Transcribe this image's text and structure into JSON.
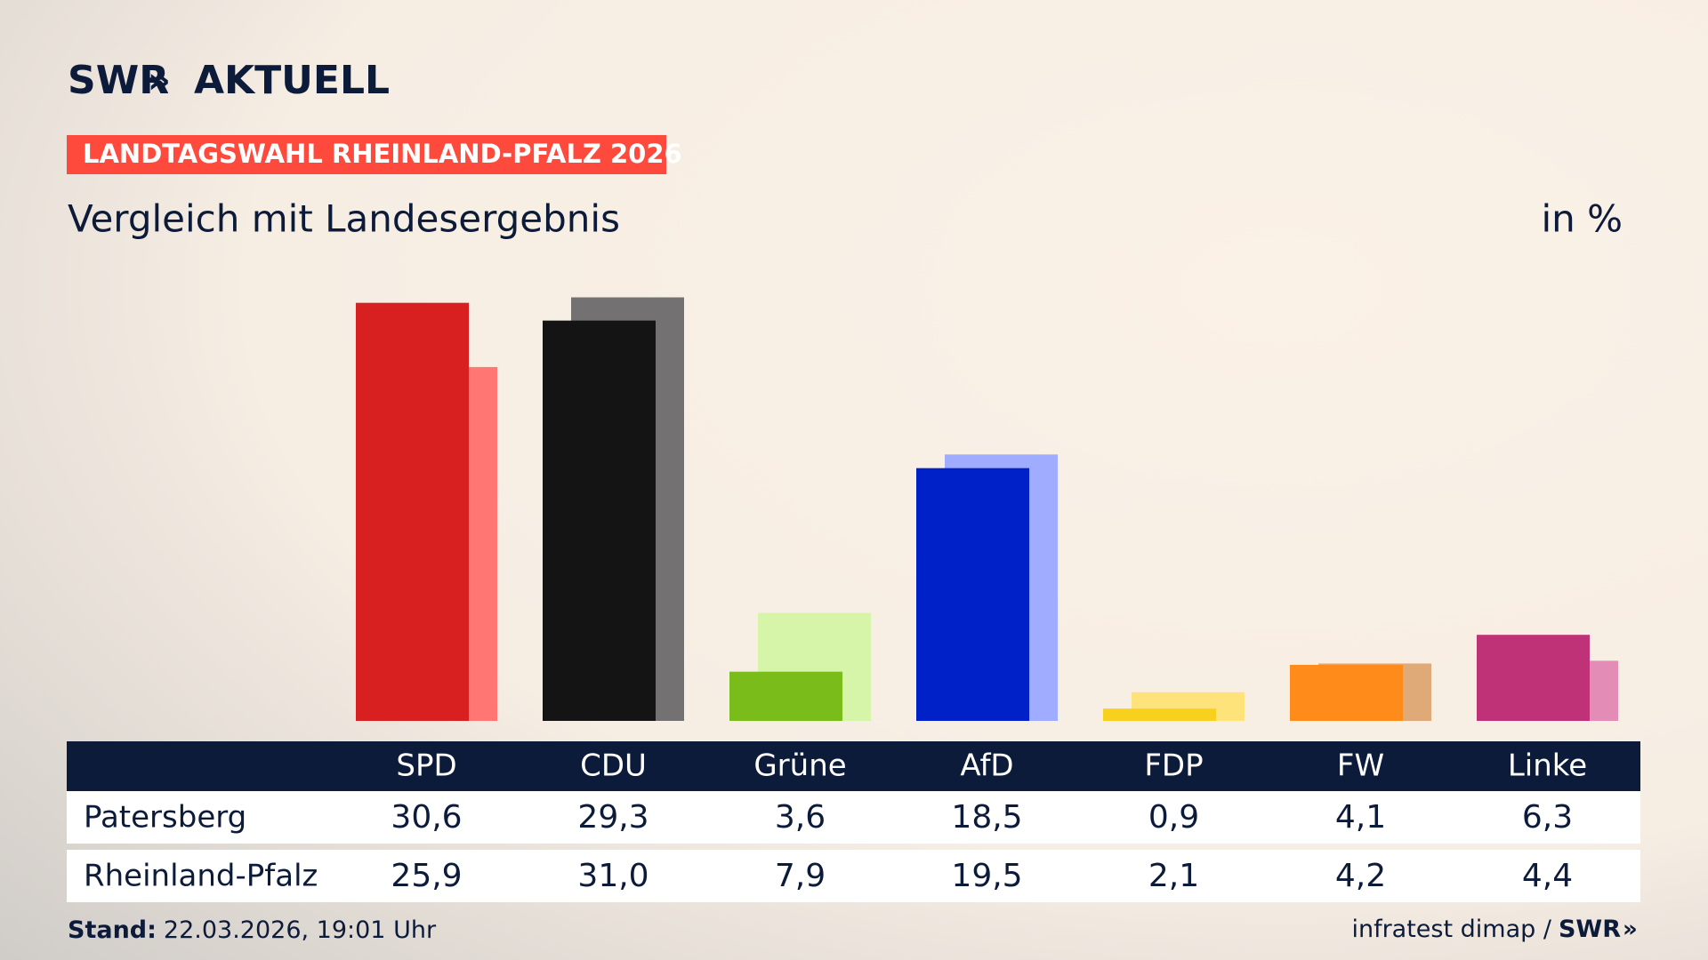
{
  "header": {
    "brand": "SWR",
    "product": "AKTUELL",
    "tag": "LANDTAGSWAHL RHEINLAND-PFALZ 2026"
  },
  "chart_data": {
    "type": "bar",
    "title": "Vergleich mit Landesergebnis",
    "unit": "in %",
    "categories": [
      "SPD",
      "CDU",
      "Grüne",
      "AfD",
      "FDP",
      "FW",
      "Linke"
    ],
    "series": [
      {
        "name": "Patersberg",
        "colors": [
          "#d7201f",
          "#141414",
          "#7abd1b",
          "#0021c8",
          "#f8d11e",
          "#ff8b1a",
          "#c03277"
        ],
        "values": [
          30.6,
          29.3,
          3.6,
          18.5,
          0.9,
          4.1,
          6.3
        ],
        "value_labels": [
          "30,6",
          "29,3",
          "3,6",
          "18,5",
          "0,9",
          "4,1",
          "6,3"
        ]
      },
      {
        "name": "Rheinland-Pfalz",
        "colors": [
          "#ff7672",
          "#737171",
          "#d6f5a8",
          "#a0acff",
          "#fde37a",
          "#dfa978",
          "#e38cb5"
        ],
        "values": [
          25.9,
          31.0,
          7.9,
          19.5,
          2.1,
          4.2,
          4.4
        ],
        "value_labels": [
          "25,9",
          "31,0",
          "7,9",
          "19,5",
          "2,1",
          "4,2",
          "4,4"
        ]
      }
    ]
  },
  "footer": {
    "stand_label": "Stand:",
    "stand": "22.03.2026, 19:01 Uhr",
    "source": "infratest dimap /",
    "source_brand": "SWR"
  }
}
